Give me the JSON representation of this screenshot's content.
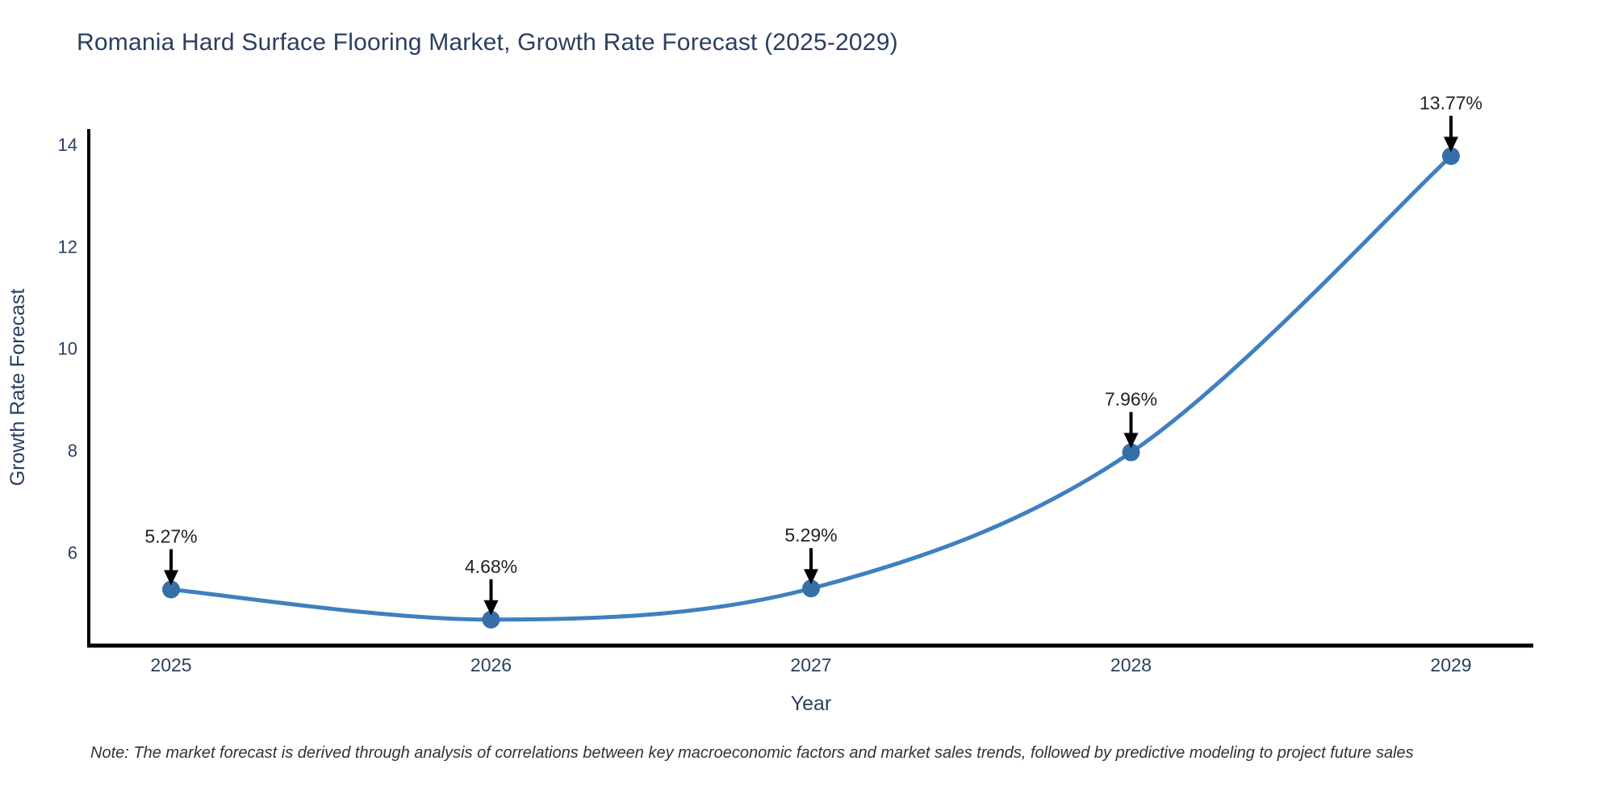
{
  "page": {
    "title": "Romania Hard Surface Flooring Market, Growth Rate Forecast (2025-2029)",
    "note": "Note: The market forecast is derived through analysis of correlations between key macroeconomic factors and market sales trends, followed by predictive modeling to project future sales"
  },
  "chart_data": {
    "type": "line",
    "title": "Romania Hard Surface Flooring Market, Growth Rate Forecast (2025-2029)",
    "xlabel": "Year",
    "ylabel": "Growth Rate Forecast",
    "categories": [
      "2025",
      "2026",
      "2027",
      "2028",
      "2029"
    ],
    "values": [
      5.27,
      4.68,
      5.29,
      7.96,
      13.77
    ],
    "point_labels": [
      "5.27%",
      "4.68%",
      "5.29%",
      "7.96%",
      "13.77%"
    ],
    "ylim": [
      4.17,
      14.3
    ],
    "yticks": [
      6,
      8,
      10,
      12,
      14
    ],
    "grid": false,
    "legend": "none",
    "curve": "spline",
    "annotation_style": "arrow-down-to-point",
    "colors": {
      "line": "#3f80c0",
      "marker": "#366fa8",
      "annotation_text": "#222222",
      "arrow": "#000000",
      "axis": "#000000",
      "title_text": "#2a3f5f",
      "tick_text": "#2a3f5f",
      "note_text": "#333333"
    }
  }
}
